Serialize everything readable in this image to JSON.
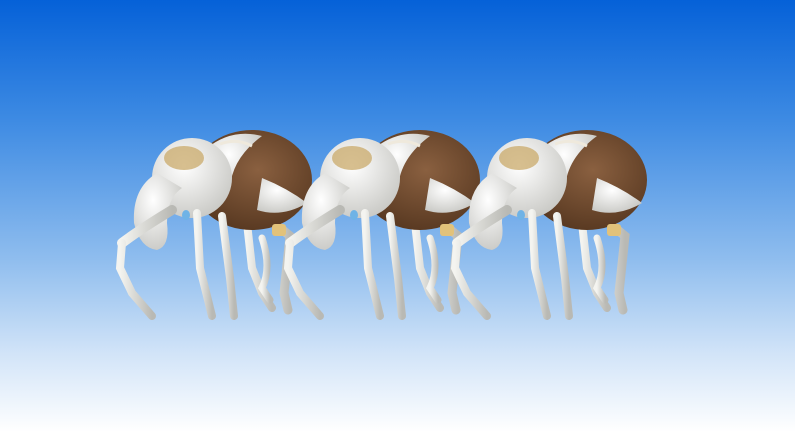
{
  "scene": {
    "description_colors": {
      "sky_top": "#0561d8",
      "sky_bottom": "#ffffff",
      "shell_brown": "#6e4a2e",
      "shell_white": "#eeeeea",
      "tan_patch": "#c9a96a"
    },
    "subjects": [
      {
        "kind": "weevil-figure"
      },
      {
        "kind": "weevil-figure"
      },
      {
        "kind": "weevil-figure"
      }
    ]
  }
}
